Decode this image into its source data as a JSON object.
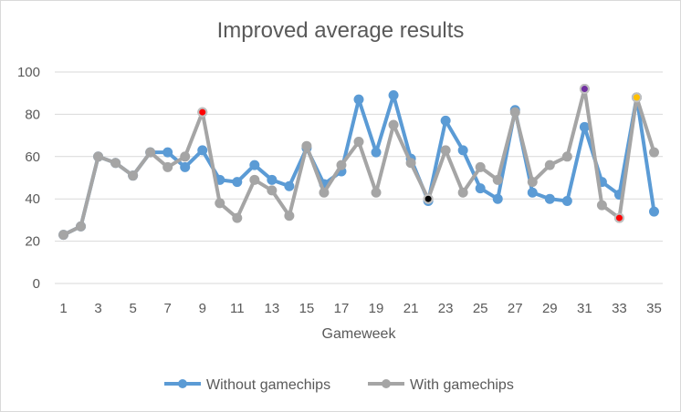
{
  "chart_data": {
    "type": "line",
    "title": "Improved average results",
    "xlabel": "Gameweek",
    "ylabel": "",
    "x": [
      1,
      2,
      3,
      4,
      5,
      6,
      7,
      8,
      9,
      10,
      11,
      12,
      13,
      14,
      15,
      16,
      17,
      18,
      19,
      20,
      21,
      22,
      23,
      24,
      25,
      26,
      27,
      28,
      29,
      30,
      31,
      32,
      33,
      34,
      35
    ],
    "x_tick_labels": [
      "1",
      "3",
      "5",
      "7",
      "9",
      "11",
      "13",
      "15",
      "17",
      "19",
      "21",
      "23",
      "25",
      "27",
      "29",
      "31",
      "33",
      "35"
    ],
    "ylim": [
      0,
      100
    ],
    "y_ticks": [
      0,
      20,
      40,
      60,
      80,
      100
    ],
    "grid": "horizontal",
    "legend_position": "bottom",
    "series": [
      {
        "name": "Without gamechips",
        "color": "#5b9bd5",
        "values": [
          23,
          27,
          60,
          57,
          51,
          62,
          62,
          55,
          63,
          49,
          48,
          56,
          49,
          46,
          64,
          47,
          53,
          87,
          62,
          89,
          59,
          39,
          77,
          63,
          45,
          40,
          82,
          43,
          40,
          39,
          74,
          48,
          42,
          88,
          34
        ]
      },
      {
        "name": "With gamechips",
        "color": "#a5a5a5",
        "values": [
          23,
          27,
          60,
          57,
          51,
          62,
          55,
          60,
          81,
          38,
          31,
          49,
          44,
          32,
          65,
          43,
          56,
          67,
          43,
          75,
          57,
          40,
          63,
          43,
          55,
          49,
          81,
          48,
          56,
          60,
          92,
          37,
          31,
          88,
          62
        ]
      }
    ],
    "highlighted_points": [
      {
        "x": 9,
        "y": 81,
        "color": "#ff0000"
      },
      {
        "x": 22,
        "y": 40,
        "color": "#000000"
      },
      {
        "x": 31,
        "y": 92,
        "color": "#7030a0"
      },
      {
        "x": 33,
        "y": 31,
        "color": "#ff0000"
      },
      {
        "x": 34,
        "y": 88,
        "color": "#ffc000"
      }
    ]
  }
}
